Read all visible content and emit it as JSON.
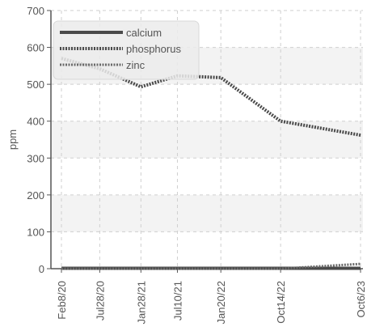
{
  "chart_data": {
    "type": "line",
    "title": "",
    "xlabel": "",
    "ylabel": "ppm",
    "ylim": [
      0,
      700
    ],
    "yticks": [
      0,
      100,
      200,
      300,
      400,
      500,
      600,
      700
    ],
    "x": [
      "Feb8/20",
      "Jul28/20",
      "Jan28/21",
      "Jul10/21",
      "Jan20/22",
      "Oct14/22",
      "Oct6/23"
    ],
    "grid": true,
    "legend_position": "top-left",
    "series": [
      {
        "name": "calcium",
        "color": "#4a4a4a",
        "style": "solid",
        "x": [
          "2020-02-08",
          "2020-07-28",
          "2021-01-28",
          "2021-07-10",
          "2022-01-20",
          "2022-10-14",
          "2023-10-06"
        ],
        "values": [
          1,
          1,
          1,
          1,
          1,
          1,
          1
        ]
      },
      {
        "name": "phosphorus",
        "color": "#4a4a4a",
        "style": "dotted-thick",
        "x": [
          "2020-02-08",
          "2020-07-28",
          "2021-01-28",
          "2021-07-10",
          "2022-01-20",
          "2022-10-14",
          "2023-10-06"
        ],
        "values": [
          570,
          542,
          493,
          523,
          518,
          400,
          362
        ]
      },
      {
        "name": "zinc",
        "color": "#6a6a6a",
        "style": "dotted",
        "x": [
          "2020-02-08",
          "2020-07-28",
          "2021-01-28",
          "2021-07-10",
          "2022-01-20",
          "2022-10-14",
          "2023-10-06"
        ],
        "values": [
          0,
          0,
          0,
          0,
          0,
          0,
          13
        ]
      }
    ]
  }
}
